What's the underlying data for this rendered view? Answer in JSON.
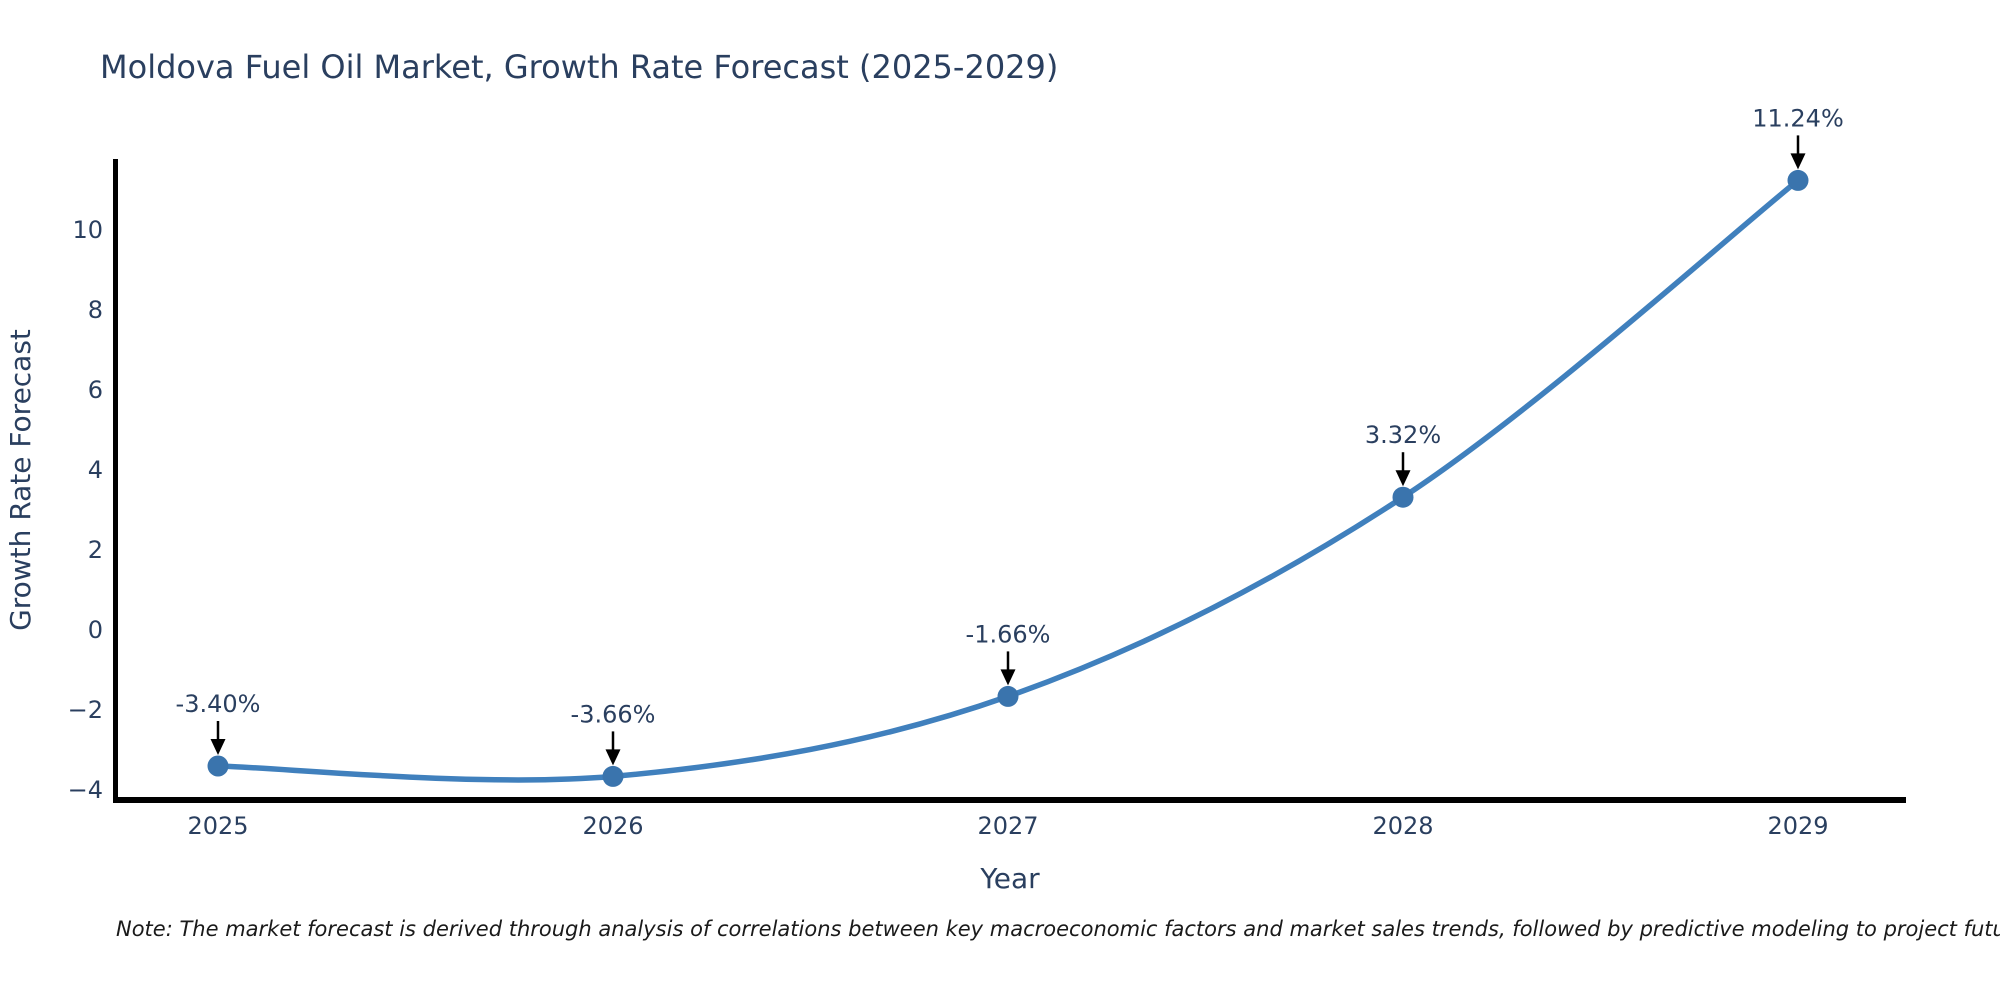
{
  "title": "Moldova Fuel Oil Market, Growth Rate Forecast (2025-2029)",
  "note": "Note: The market forecast is derived through analysis of correlations between key macroeconomic factors and market sales trends, followed by predictive modeling to project future sales",
  "chart_data": {
    "type": "line",
    "title": "Moldova Fuel Oil Market, Growth Rate Forecast (2025-2029)",
    "xlabel": "Year",
    "ylabel": "Growth Rate Forecast",
    "categories": [
      "2025",
      "2026",
      "2027",
      "2028",
      "2029"
    ],
    "values": [
      -3.4,
      -3.66,
      -1.66,
      3.32,
      11.24
    ],
    "point_labels": [
      "-3.40%",
      "-3.66%",
      "-1.66%",
      "3.32%",
      "11.24%"
    ],
    "yticks": [
      10,
      8,
      6,
      4,
      2,
      0,
      -2,
      -4
    ],
    "ylim": [
      -4.25,
      11.78
    ],
    "grid": false,
    "legend": false,
    "line_shape": "spline",
    "line_color": "#4080bd",
    "marker_color": "#3a74ad",
    "arrow_color": "#000000",
    "axis_color": "#000000",
    "text_color": "#2a3f5f"
  }
}
